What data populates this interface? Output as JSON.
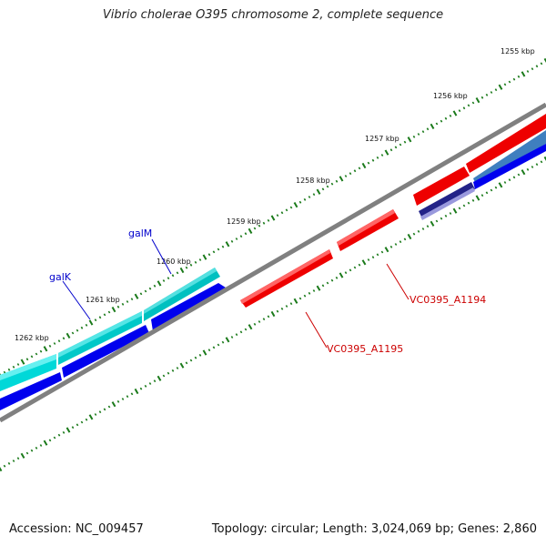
{
  "title": "Vibrio cholerae O395 chromosome 2, complete sequence",
  "footer": {
    "accession": "Accession: NC_009457",
    "summary": "Topology: circular; Length: 3,024,069 bp; Genes: 2,860"
  },
  "ruler": {
    "labels": [
      "1255 kbp",
      "1256 kbp",
      "1257 kbp",
      "1258 kbp",
      "1259 kbp",
      "1260 kbp",
      "1261 kbp",
      "1262 kbp"
    ]
  },
  "genes": {
    "galM": {
      "label": "galM",
      "color": "#0000cc"
    },
    "galK": {
      "label": "galK",
      "color": "#0000cc"
    },
    "VC0395_A1194": {
      "label": "VC0395_A1194",
      "color": "#cc0000"
    },
    "VC0395_A1195": {
      "label": "VC0395_A1195",
      "color": "#cc0000"
    }
  },
  "colors": {
    "backbone": "#808080",
    "reverse_strand_cyan": "#00cccc",
    "reverse_strand_blue": "#0000ee",
    "forward_strand_red": "#ee0000",
    "tick": "#1a7a1a"
  }
}
